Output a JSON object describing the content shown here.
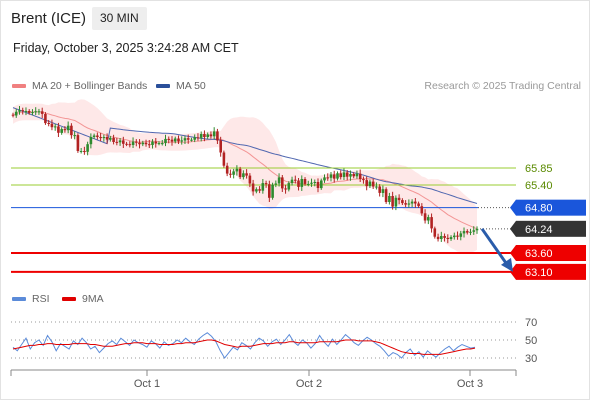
{
  "header": {
    "instrument": "Brent (ICE)",
    "timeframe": "30 MIN",
    "datetime": "Friday, October 3, 2025 3:24:28 AM CET"
  },
  "price_legend": [
    {
      "label": "MA 20 + Bollinger Bands",
      "color": "#f08080"
    },
    {
      "label": "MA 50",
      "color": "#2a4f9a"
    }
  ],
  "credit": "Research © 2025 Trading Central",
  "rsi_legend": [
    {
      "label": "RSI",
      "color": "#5b8bd9"
    },
    {
      "label": "9MA",
      "color": "#e00000"
    }
  ],
  "colors": {
    "up": "#2e8b2e",
    "down": "#b22222",
    "resistance_green": "#9acd32",
    "level_blue": "#1a56db",
    "level_red": "#ee0000",
    "last_price_tag": "#333333",
    "ma50": "#5067b0",
    "band": "#fde0e0",
    "ma20": "#f08080",
    "projection": "#2a5caa"
  },
  "chart_data": [
    {
      "type": "candlestick",
      "title": "Brent (ICE) 30 MIN",
      "x_labels": [
        "Oct 1",
        "Oct 2",
        "Oct 3"
      ],
      "levels": [
        {
          "value": 65.85,
          "label": "65.85",
          "kind": "resistance"
        },
        {
          "value": 65.4,
          "label": "65.40",
          "kind": "resistance"
        },
        {
          "value": 64.8,
          "label": "64.80",
          "kind": "pivot"
        },
        {
          "value": 63.6,
          "label": "63.60",
          "kind": "support"
        },
        {
          "value": 63.1,
          "label": "63.10",
          "kind": "support"
        }
      ],
      "last_price": {
        "value": 64.24,
        "label": "64.24"
      },
      "projection": {
        "from": 64.24,
        "to": 63.1
      },
      "closes": [
        67.24,
        67.34,
        67.38,
        67.36,
        67.36,
        67.31,
        67.33,
        67.35,
        67.35,
        67.28,
        67.04,
        67.02,
        66.93,
        66.95,
        66.78,
        66.88,
        66.85,
        66.97,
        66.72,
        66.72,
        66.3,
        66.3,
        66.28,
        66.48,
        66.67,
        66.71,
        66.67,
        66.64,
        66.67,
        66.6,
        66.65,
        66.54,
        66.53,
        66.58,
        66.49,
        66.48,
        66.46,
        66.55,
        66.52,
        66.48,
        66.52,
        66.48,
        66.46,
        66.55,
        66.5,
        66.51,
        66.51,
        66.62,
        66.6,
        66.55,
        66.63,
        66.55,
        66.58,
        66.64,
        66.6,
        66.6,
        66.66,
        66.65,
        66.75,
        66.67,
        66.74,
        66.69,
        66.82,
        66.58,
        66.26,
        65.91,
        65.7,
        65.67,
        65.76,
        65.83,
        65.61,
        65.71,
        65.65,
        65.44,
        65.23,
        65.29,
        65.25,
        65.45,
        65.42,
        65.06,
        65.41,
        65.44,
        65.6,
        65.31,
        65.28,
        65.45,
        65.54,
        65.52,
        65.35,
        65.56,
        65.43,
        65.43,
        65.46,
        65.48,
        65.32,
        65.52,
        65.6,
        65.59,
        65.68,
        65.57,
        65.71,
        65.61,
        65.73,
        65.62,
        65.69,
        65.63,
        65.7,
        65.56,
        65.53,
        65.37,
        65.49,
        65.36,
        65.36,
        65.19,
        65.29,
        64.95,
        65.11,
        64.83,
        65.06,
        65.0,
        64.92,
        64.88,
        64.91,
        64.96,
        64.91,
        64.84,
        64.65,
        64.46,
        64.55,
        64.25,
        64.03,
        63.97,
        64.05,
        64.0,
        63.97,
        64.02,
        64.06,
        64.03,
        64.12,
        64.18,
        64.14,
        64.16,
        64.2,
        64.24
      ]
    },
    {
      "type": "line",
      "title": "RSI",
      "series": [
        {
          "name": "RSI",
          "values": [
            42,
            38,
            45,
            52,
            40,
            47,
            50,
            44,
            55,
            48,
            38,
            46,
            43,
            40,
            49,
            45,
            52,
            47,
            40,
            43,
            36,
            41,
            46,
            49,
            45,
            52,
            48,
            44,
            50,
            47,
            45,
            42,
            49,
            46,
            41,
            48,
            44,
            46,
            50,
            47,
            52,
            48,
            45,
            51,
            55,
            58,
            54,
            48,
            38,
            30,
            36,
            42,
            39,
            47,
            44,
            40,
            47,
            52,
            49,
            43,
            48,
            51,
            45,
            50,
            56,
            48,
            44,
            50,
            47,
            41,
            46,
            55,
            48,
            43,
            51,
            45,
            50,
            56,
            52,
            47,
            44,
            49,
            53,
            50,
            46,
            43,
            38,
            32,
            36,
            34,
            30,
            36,
            40,
            33,
            37,
            31,
            38,
            34,
            31,
            36,
            40,
            43,
            38,
            42,
            45,
            43,
            41,
            42
          ]
        },
        {
          "name": "9MA",
          "values": [
            40,
            41,
            42,
            43,
            44,
            44,
            45,
            45,
            46,
            46,
            45,
            45,
            45,
            45,
            46,
            46,
            46,
            46,
            45,
            45,
            44,
            43,
            43,
            43,
            44,
            45,
            46,
            46,
            47,
            47,
            47,
            46,
            46,
            46,
            45,
            45,
            45,
            45,
            46,
            46,
            47,
            47,
            47,
            48,
            49,
            50,
            50,
            49,
            47,
            45,
            44,
            43,
            42,
            43,
            43,
            43,
            44,
            45,
            46,
            46,
            46,
            47,
            47,
            47,
            48,
            48,
            47,
            47,
            47,
            47,
            47,
            48,
            48,
            48,
            48,
            48,
            49,
            50,
            50,
            50,
            49,
            49,
            49,
            49,
            48,
            47,
            45,
            43,
            41,
            39,
            37,
            36,
            35,
            35,
            35,
            34,
            34,
            34,
            34,
            34,
            35,
            36,
            37,
            38,
            39,
            40,
            40,
            41
          ]
        }
      ],
      "y_ticks": [
        70,
        50,
        30
      ],
      "ylim": [
        20,
        80
      ]
    }
  ]
}
